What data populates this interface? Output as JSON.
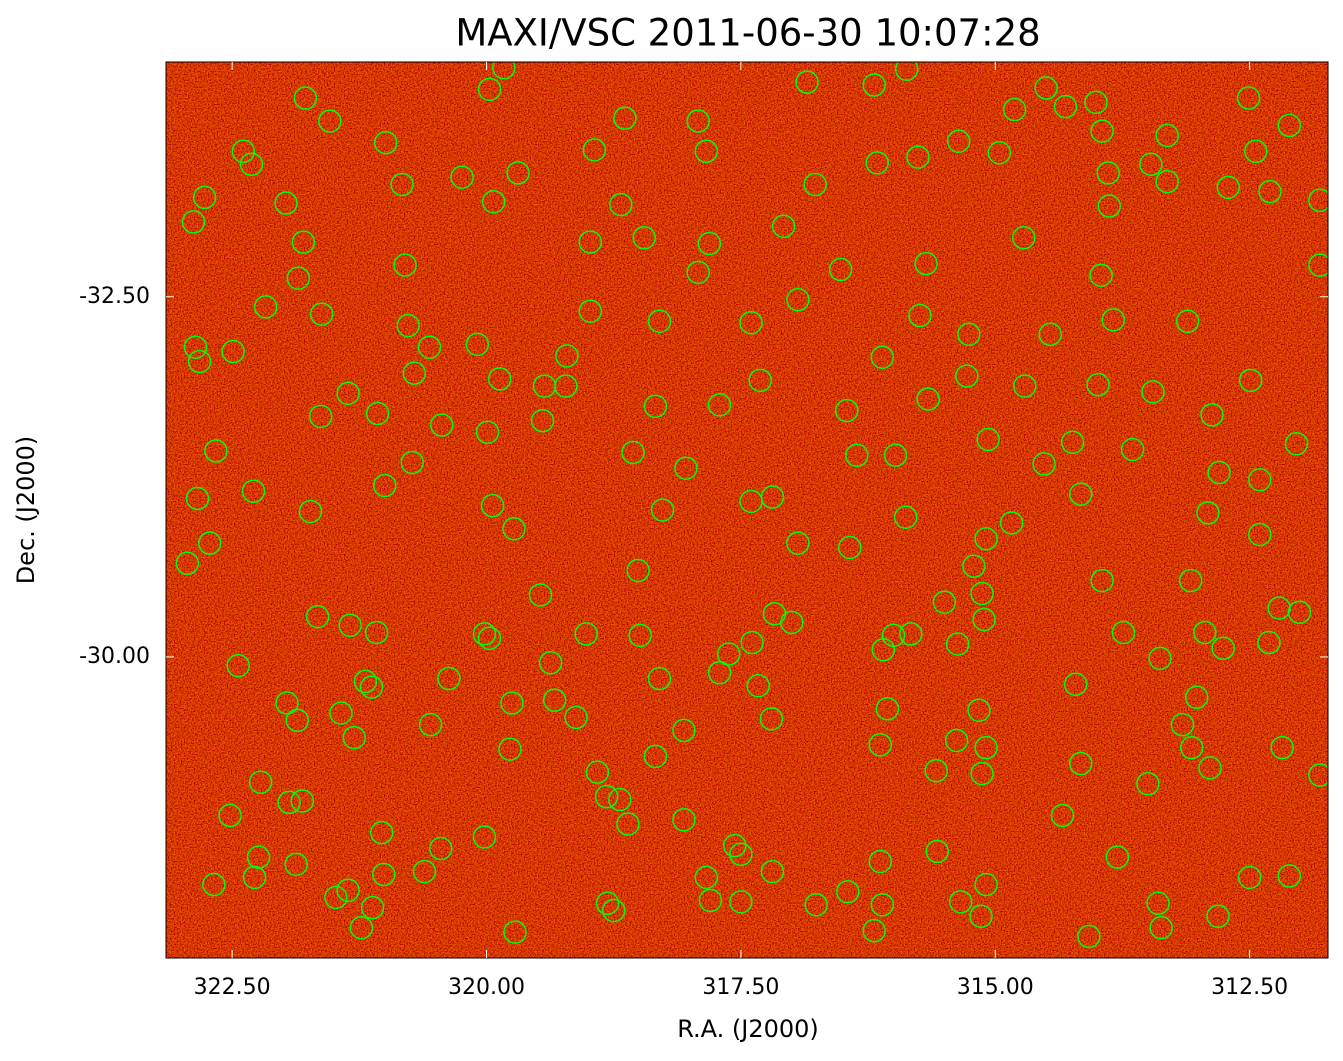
{
  "chart_data": {
    "type": "scatter",
    "title": "MAXI/VSC 2011-06-30 10:07:28",
    "xlabel": "R.A. (J2000)",
    "ylabel": "Dec. (J2000)",
    "xlim": [
      323.15,
      311.73
    ],
    "ylim": [
      -27.91,
      -34.13
    ],
    "xticks": [
      {
        "value": 322.5,
        "label": "322.50"
      },
      {
        "value": 320,
        "label": "320.00"
      },
      {
        "value": 317.5,
        "label": "317.50"
      },
      {
        "value": 315,
        "label": "315.00"
      },
      {
        "value": 312.5,
        "label": "312.50"
      }
    ],
    "yticks": [
      {
        "value": -32.5,
        "label": "-32.50"
      },
      {
        "value": -30,
        "label": "-30.00"
      }
    ],
    "marker_color": "#00ff00",
    "background_color": "#b00000",
    "x": [
      321.78,
      321.54,
      322.39,
      322.31,
      322.77,
      322.88,
      321.97,
      321.8,
      321.85,
      322.17,
      321.62,
      322.86,
      322.82,
      322.49,
      322.66,
      322.84,
      322.29,
      322.72,
      322.94,
      321.73,
      321.63,
      321.36,
      320.99,
      320.83,
      319.97,
      319.83,
      320.8,
      320.77,
      320.71,
      320.56,
      320.24,
      319.93,
      319.69,
      320.09,
      319.87,
      320.44,
      320.73,
      321.0,
      321.07,
      319.99,
      319.94,
      319.73,
      319.47,
      319.21,
      319.45,
      318.94,
      318.64,
      318.98,
      318.98,
      318.68,
      318.45,
      318.3,
      318.34,
      318.56,
      318.27,
      318.51,
      317.92,
      317.84,
      317.81,
      317.92,
      317.4,
      317.31,
      317.71,
      318.04,
      317.4,
      317.19,
      316.94,
      317.17,
      316.85,
      317.08,
      316.77,
      316.94,
      316.52,
      316.46,
      316.36,
      316.43,
      316.19,
      316.16,
      315.87,
      315.76,
      315.68,
      315.74,
      316.11,
      315.66,
      315.98,
      315.88,
      315.36,
      314.96,
      314.81,
      315.26,
      315.28,
      315.07,
      314.72,
      314.71,
      314.46,
      314.5,
      314.31,
      314.01,
      313.95,
      313.89,
      313.88,
      313.96,
      313.84,
      313.99,
      313.45,
      313.11,
      313.47,
      313.31,
      313.31,
      312.71,
      312.51,
      312.11,
      312.3,
      311.81,
      311.81,
      312.44,
      312.49,
      312.87,
      312.04,
      312.4,
      312.8,
      312.91,
      312.4,
      313.08,
      312.21,
      312.01,
      312.94,
      312.76,
      312.31,
      313.38,
      313.02,
      313.16,
      313.07,
      312.89,
      313.5,
      313.74,
      313.95,
      314.16,
      314.52,
      314.24,
      313.65,
      314.21,
      314.16,
      314.34,
      313.8,
      314.08,
      313.4,
      313.37,
      312.81,
      312.5,
      312.11,
      312.18,
      311.81,
      314.84,
      315.09,
      315.21,
      315.13,
      315.11,
      315.5,
      315.37,
      315.83,
      316.0,
      316.1,
      316.06,
      316.13,
      315.38,
      315.16,
      315.09,
      315.13,
      315.58,
      315.57,
      315.09,
      315.34,
      315.14,
      316.11,
      316.13,
      316.45,
      316.19,
      316.76,
      317.5,
      317.8,
      317.84,
      317.56,
      317.5,
      317.19,
      317.2,
      317.33,
      317.39,
      317.62,
      317.71,
      317.0,
      318.06,
      318.06,
      318.34,
      318.3,
      318.49,
      319.02,
      319.37,
      319.33,
      319.12,
      318.91,
      318.82,
      318.69,
      318.61,
      318.81,
      318.75,
      319.72,
      320.02,
      319.77,
      319.75,
      320.02,
      319.97,
      320.37,
      320.55,
      320.45,
      320.61,
      321.01,
      321.03,
      321.12,
      321.23,
      321.36,
      321.48,
      321.87,
      321.81,
      321.94,
      322.22,
      322.24,
      322.28,
      322.52,
      322.68,
      322.44,
      321.96,
      321.86,
      321.43,
      321.3,
      321.19,
      321.13,
      321.34,
      321.08,
      321.66,
      319.43,
      319.22
    ],
    "values": [
      -33.88,
      -33.72,
      -33.51,
      -33.42,
      -33.19,
      -33.02,
      -33.15,
      -32.88,
      -32.63,
      -32.43,
      -32.38,
      -32.15,
      -32.05,
      -32.12,
      -31.43,
      -31.1,
      -31.15,
      -30.79,
      -30.65,
      -31.01,
      -31.67,
      -31.83,
      -33.57,
      -33.28,
      -33.94,
      -34.09,
      -32.72,
      -32.3,
      -31.97,
      -32.15,
      -33.33,
      -33.16,
      -33.36,
      -32.17,
      -31.93,
      -31.61,
      -31.35,
      -31.19,
      -31.69,
      -31.56,
      -31.05,
      -30.89,
      -30.43,
      -32.09,
      -31.64,
      -33.52,
      -33.74,
      -32.4,
      -32.88,
      -33.14,
      -32.91,
      -32.33,
      -31.74,
      -31.42,
      -31.02,
      -30.6,
      -33.72,
      -33.51,
      -32.87,
      -32.67,
      -32.32,
      -31.92,
      -31.75,
      -31.31,
      -31.08,
      -31.11,
      -30.79,
      -30.3,
      -33.99,
      -32.99,
      -33.28,
      -32.48,
      -32.69,
      -31.71,
      -31.4,
      -30.76,
      -33.97,
      -33.43,
      -34.08,
      -33.47,
      -32.73,
      -32.37,
      -32.08,
      -31.79,
      -31.4,
      -30.97,
      -33.58,
      -33.5,
      -33.8,
      -32.24,
      -31.95,
      -31.51,
      -32.91,
      -31.88,
      -32.24,
      -33.95,
      -33.82,
      -33.85,
      -33.65,
      -33.36,
      -33.13,
      -32.65,
      -32.34,
      -31.89,
      -31.84,
      -32.33,
      -33.42,
      -33.62,
      -33.3,
      -33.26,
      -33.88,
      -33.69,
      -33.23,
      -33.17,
      -32.72,
      -33.51,
      -31.92,
      -31.68,
      -31.48,
      -31.23,
      -31.28,
      -31.0,
      -30.85,
      -30.53,
      -30.34,
      -30.31,
      -30.17,
      -30.06,
      -30.1,
      -29.99,
      -29.72,
      -29.53,
      -29.37,
      -29.23,
      -29.12,
      -30.17,
      -30.53,
      -31.13,
      -31.34,
      -31.49,
      -31.44,
      -29.81,
      -29.26,
      -28.9,
      -28.61,
      -28.06,
      -28.29,
      -28.12,
      -28.2,
      -28.47,
      -28.48,
      -29.37,
      -29.18,
      -30.93,
      -30.82,
      -30.63,
      -30.44,
      -30.26,
      -30.38,
      -30.09,
      -30.16,
      -30.15,
      -30.05,
      -29.64,
      -29.39,
      -29.42,
      -29.63,
      -29.37,
      -29.19,
      -29.21,
      -28.65,
      -28.42,
      -28.3,
      -28.2,
      -28.28,
      -28.58,
      -28.37,
      -28.1,
      -28.28,
      -28.3,
      -28.31,
      -28.47,
      -28.69,
      -28.63,
      -28.51,
      -29.57,
      -29.8,
      -30.1,
      -30.02,
      -29.89,
      -30.24,
      -29.49,
      -28.87,
      -29.31,
      -29.85,
      -30.15,
      -30.16,
      -29.96,
      -29.7,
      -29.58,
      -29.2,
      -29.03,
      -29.01,
      -28.84,
      -28.29,
      -28.24,
      -28.09,
      -28.75,
      -29.36,
      -29.68,
      -30.16,
      -30.13,
      -29.85,
      -29.53,
      -28.67,
      -28.51,
      -28.49,
      -28.78,
      -28.26,
      -28.12,
      -28.38,
      -28.33,
      -28.56,
      -29.0,
      -28.99,
      -29.13,
      -28.61,
      -28.47,
      -28.9,
      -28.42,
      -29.94,
      -29.68,
      -29.56,
      -29.61,
      -29.44,
      -29.83,
      -29.79,
      -30.22,
      -30.17,
      -30.28,
      -31.88,
      -31.88
    ]
  }
}
